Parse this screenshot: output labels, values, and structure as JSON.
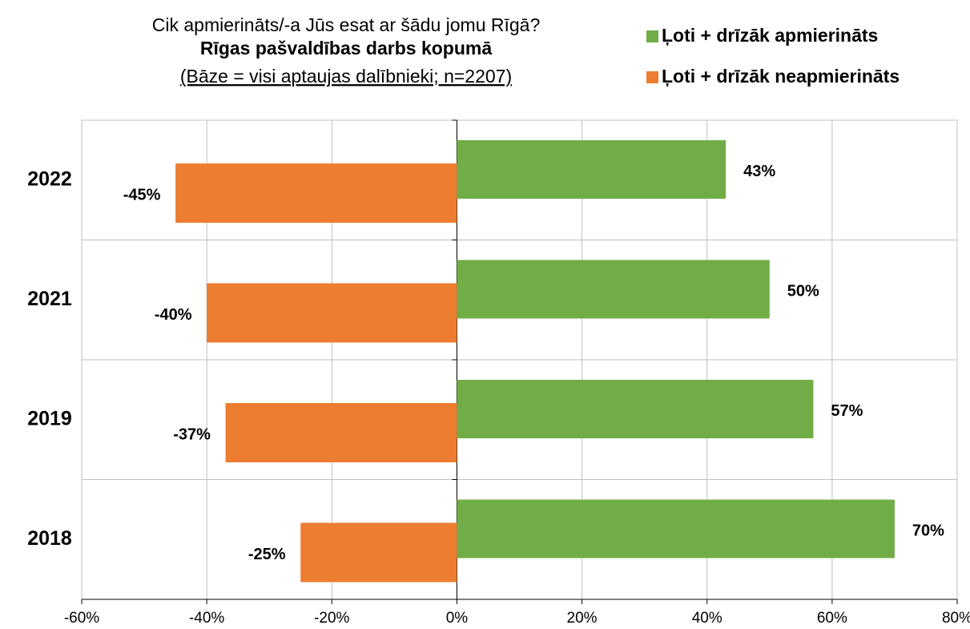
{
  "chart_data": {
    "type": "bar",
    "orientation": "horizontal",
    "title": "Cik apmierināts/-a Jūs esat ar šādu jomu Rīgā?",
    "subtitle": "Rīgas pašvaldības darbs kopumā",
    "note": "(Bāze = visi aptaujas dalībnieki; n=2207)",
    "categories": [
      "2022",
      "2021",
      "2019",
      "2018"
    ],
    "series": [
      {
        "name": "Ļoti + drīzāk apmierināts",
        "color": "#70ad47",
        "values": [
          43,
          50,
          57,
          70
        ],
        "value_labels": [
          "43%",
          "50%",
          "57%",
          "70%"
        ]
      },
      {
        "name": "Ļoti + drīzāk neapmierināts",
        "color": "#ed7d31",
        "values": [
          -45,
          -40,
          -37,
          -25
        ],
        "value_labels": [
          "-45%",
          "-40%",
          "-37%",
          "-25%"
        ]
      }
    ],
    "xlim": [
      -60,
      80
    ],
    "xticks": [
      {
        "value": -60,
        "label": "-60%"
      },
      {
        "value": -40,
        "label": "-40%"
      },
      {
        "value": -20,
        "label": "-20%"
      },
      {
        "value": 0,
        "label": "0%"
      },
      {
        "value": 20,
        "label": "20%"
      },
      {
        "value": 40,
        "label": "40%"
      },
      {
        "value": 60,
        "label": "60%"
      },
      {
        "value": 80,
        "label": "80%"
      }
    ],
    "grid": true,
    "legend": "top-right"
  }
}
